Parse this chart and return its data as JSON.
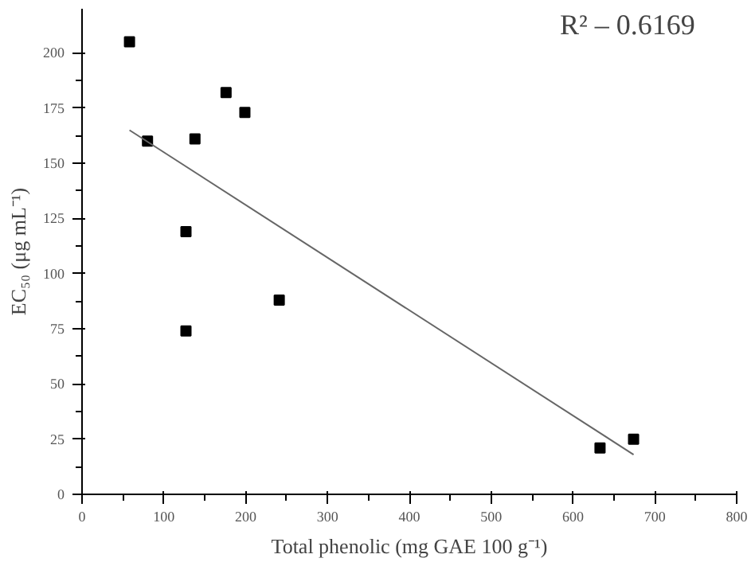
{
  "chart_data": {
    "type": "scatter",
    "xlabel": "Total phenolic (mg GAE 100 g⁻¹)",
    "ylabel": "EC₅₀ (μg mL⁻¹)",
    "x": [
      58,
      80,
      138,
      127,
      176,
      199,
      127,
      241,
      633,
      674
    ],
    "series": [
      {
        "color": "#000000",
        "marker": "square",
        "values": [
          205,
          160,
          161,
          119,
          182,
          173,
          74,
          88,
          21,
          25
        ]
      },
      {
        "type": "line",
        "color": "#666666",
        "x": [
          58,
          674
        ],
        "values": [
          165,
          18
        ]
      }
    ],
    "annotations": [
      "R² – 0.6169"
    ],
    "xlim": [
      0,
      800
    ],
    "ylim": [
      0,
      220
    ],
    "xticks": [
      0,
      100,
      200,
      300,
      400,
      500,
      600,
      700,
      800
    ],
    "yticks": [
      0,
      25,
      50,
      75,
      100,
      125,
      150,
      175,
      200
    ],
    "grid": false
  }
}
